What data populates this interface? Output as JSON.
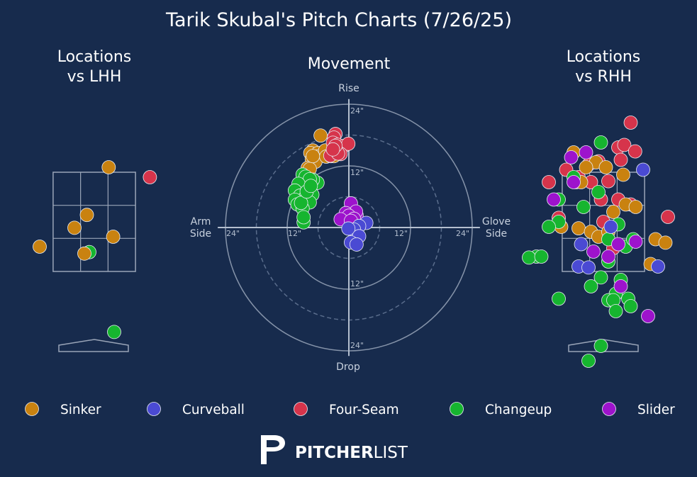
{
  "title": "Tarik Skubal's Pitch Charts (7/26/25)",
  "brand": {
    "bold": "PITCHER",
    "light": "LIST"
  },
  "colors": {
    "Sinker": "#c98210",
    "Curveball": "#4a4ad3",
    "Four-Seam": "#d6344b",
    "Changeup": "#16b52f",
    "Slider": "#9d13cc",
    "background": "#172b4d"
  },
  "legend": [
    "Sinker",
    "Curveball",
    "Four-Seam",
    "Changeup",
    "Slider"
  ],
  "chart_data": [
    {
      "type": "scatter",
      "title": "Locations vs LHH",
      "title_lines": [
        "Locations",
        "vs LHH"
      ],
      "x_unit": "ft from plate center (catcher view)",
      "y_unit": "ft above ground",
      "strike_zone": {
        "x": [
          -0.83,
          0.83
        ],
        "z": [
          1.5,
          3.5
        ]
      },
      "points": [
        {
          "pitch": "Sinker",
          "x": 0.29,
          "z": 3.6
        },
        {
          "pitch": "Four-Seam",
          "x": 1.12,
          "z": 3.4
        },
        {
          "pitch": "Sinker",
          "x": -0.15,
          "z": 2.64
        },
        {
          "pitch": "Sinker",
          "x": -0.4,
          "z": 2.38
        },
        {
          "pitch": "Sinker",
          "x": 0.38,
          "z": 2.2
        },
        {
          "pitch": "Sinker",
          "x": -1.1,
          "z": 2.0
        },
        {
          "pitch": "Changeup",
          "x": -0.1,
          "z": 1.89
        },
        {
          "pitch": "Sinker",
          "x": -0.2,
          "z": 1.86
        },
        {
          "pitch": "Changeup",
          "x": 0.4,
          "z": 0.28
        }
      ]
    },
    {
      "type": "scatter",
      "title": "Movement",
      "x_unit": "inches horizontal break",
      "y_unit": "inches induced vertical break",
      "axis_labels": {
        "top": "Rise",
        "bottom": "Drop",
        "left": "Arm\nSide",
        "right": "Glove\nSide"
      },
      "ring_labels": {
        "up": [
          "12\"",
          "24\""
        ],
        "down": [
          "12\"",
          "24\""
        ],
        "left": [
          "12\"",
          "24\""
        ],
        "right": [
          "12\"",
          "24\""
        ]
      },
      "rings": [
        6,
        12,
        18,
        24
      ],
      "points": [
        {
          "pitch": "Sinker",
          "x": -5.5,
          "y": 17.9
        },
        {
          "pitch": "Sinker",
          "x": -7.0,
          "y": 15.0
        },
        {
          "pitch": "Sinker",
          "x": -7.5,
          "y": 14.5
        },
        {
          "pitch": "Sinker",
          "x": -6.0,
          "y": 14.5
        },
        {
          "pitch": "Sinker",
          "x": -6.3,
          "y": 13.8
        },
        {
          "pitch": "Sinker",
          "x": -7.2,
          "y": 13.3
        },
        {
          "pitch": "Sinker",
          "x": -6.5,
          "y": 12.8
        },
        {
          "pitch": "Sinker",
          "x": -4.4,
          "y": 14.3
        },
        {
          "pitch": "Sinker",
          "x": -4.6,
          "y": 15.0
        },
        {
          "pitch": "Sinker",
          "x": -8.0,
          "y": 11.6
        },
        {
          "pitch": "Sinker",
          "x": -7.6,
          "y": 11.4
        },
        {
          "pitch": "Sinker",
          "x": -4.4,
          "y": 13.8
        },
        {
          "pitch": "Sinker",
          "x": -7.0,
          "y": 13.9
        },
        {
          "pitch": "Sinker",
          "x": -3.5,
          "y": 13.9
        },
        {
          "pitch": "Sinker",
          "x": -2.9,
          "y": 13.9
        },
        {
          "pitch": "Four-Seam",
          "x": -2.6,
          "y": 18.2
        },
        {
          "pitch": "Four-Seam",
          "x": -2.9,
          "y": 17.5
        },
        {
          "pitch": "Four-Seam",
          "x": -3.1,
          "y": 16.5
        },
        {
          "pitch": "Four-Seam",
          "x": -2.2,
          "y": 16.1
        },
        {
          "pitch": "Four-Seam",
          "x": -2.8,
          "y": 15.3
        },
        {
          "pitch": "Four-Seam",
          "x": -2.1,
          "y": 15.1
        },
        {
          "pitch": "Four-Seam",
          "x": -1.5,
          "y": 15.4
        },
        {
          "pitch": "Four-Seam",
          "x": -0.9,
          "y": 15.9
        },
        {
          "pitch": "Four-Seam",
          "x": -0.1,
          "y": 16.3
        },
        {
          "pitch": "Four-Seam",
          "x": -2.6,
          "y": 14.6
        },
        {
          "pitch": "Four-Seam",
          "x": -1.6,
          "y": 14.3
        },
        {
          "pitch": "Four-Seam",
          "x": -3.6,
          "y": 14.0
        },
        {
          "pitch": "Four-Seam",
          "x": -2.1,
          "y": 14.4
        },
        {
          "pitch": "Four-Seam",
          "x": -2.6,
          "y": 15.9
        },
        {
          "pitch": "Four-Seam",
          "x": -3.1,
          "y": 15.2
        },
        {
          "pitch": "Changeup",
          "x": -9.0,
          "y": 10.3
        },
        {
          "pitch": "Changeup",
          "x": -8.4,
          "y": 9.9
        },
        {
          "pitch": "Changeup",
          "x": -6.1,
          "y": 8.7
        },
        {
          "pitch": "Changeup",
          "x": -7.0,
          "y": 9.3
        },
        {
          "pitch": "Changeup",
          "x": -7.6,
          "y": 9.4
        },
        {
          "pitch": "Changeup",
          "x": -9.8,
          "y": 8.5
        },
        {
          "pitch": "Changeup",
          "x": -10.5,
          "y": 7.2
        },
        {
          "pitch": "Changeup",
          "x": -9.5,
          "y": 6.2
        },
        {
          "pitch": "Changeup",
          "x": -8.0,
          "y": 6.2
        },
        {
          "pitch": "Changeup",
          "x": -7.1,
          "y": 6.4
        },
        {
          "pitch": "Changeup",
          "x": -8.6,
          "y": 5.7
        },
        {
          "pitch": "Changeup",
          "x": -7.6,
          "y": 4.9
        },
        {
          "pitch": "Changeup",
          "x": -10.5,
          "y": 5.4
        },
        {
          "pitch": "Changeup",
          "x": -10.0,
          "y": 4.5
        },
        {
          "pitch": "Changeup",
          "x": -9.0,
          "y": 3.7
        },
        {
          "pitch": "Changeup",
          "x": -8.8,
          "y": 1.0
        },
        {
          "pitch": "Changeup",
          "x": -8.8,
          "y": 2.0
        },
        {
          "pitch": "Changeup",
          "x": -9.3,
          "y": 4.8
        },
        {
          "pitch": "Changeup",
          "x": -8.2,
          "y": 7.0
        },
        {
          "pitch": "Changeup",
          "x": -7.4,
          "y": 8.1
        },
        {
          "pitch": "Slider",
          "x": 0.4,
          "y": 3.8
        },
        {
          "pitch": "Slider",
          "x": 0.4,
          "y": 4.7
        },
        {
          "pitch": "Slider",
          "x": 1.5,
          "y": 2.4
        },
        {
          "pitch": "Slider",
          "x": 1.4,
          "y": 3.1
        },
        {
          "pitch": "Slider",
          "x": -0.6,
          "y": 2.8
        },
        {
          "pitch": "Slider",
          "x": 0.0,
          "y": 2.3
        },
        {
          "pitch": "Slider",
          "x": 1.0,
          "y": 1.7
        },
        {
          "pitch": "Slider",
          "x": -1.6,
          "y": 1.6
        },
        {
          "pitch": "Slider",
          "x": 0.4,
          "y": 1.3
        },
        {
          "pitch": "Curveball",
          "x": 3.4,
          "y": 0.9
        },
        {
          "pitch": "Curveball",
          "x": 2.0,
          "y": 0.3
        },
        {
          "pitch": "Curveball",
          "x": 1.0,
          "y": -0.4
        },
        {
          "pitch": "Curveball",
          "x": -0.1,
          "y": -0.2
        },
        {
          "pitch": "Curveball",
          "x": 2.0,
          "y": -1.7
        },
        {
          "pitch": "Curveball",
          "x": 0.4,
          "y": -2.9
        },
        {
          "pitch": "Curveball",
          "x": 1.5,
          "y": -3.3
        }
      ]
    },
    {
      "type": "scatter",
      "title": "Locations vs RHH",
      "title_lines": [
        "Locations",
        "vs RHH"
      ],
      "x_unit": "ft from plate center (catcher view)",
      "y_unit": "ft above ground",
      "strike_zone": {
        "x": [
          -0.83,
          0.83
        ],
        "z": [
          1.5,
          3.5
        ]
      },
      "points": [
        {
          "pitch": "Four-Seam",
          "x": 0.55,
          "z": 4.5
        },
        {
          "pitch": "Four-Seam",
          "x": 0.3,
          "z": 4.0
        },
        {
          "pitch": "Four-Seam",
          "x": 0.42,
          "z": 4.05
        },
        {
          "pitch": "Four-Seam",
          "x": 0.64,
          "z": 3.92
        },
        {
          "pitch": "Four-Seam",
          "x": 0.35,
          "z": 3.75
        },
        {
          "pitch": "Four-Seam",
          "x": -0.1,
          "z": 3.72
        },
        {
          "pitch": "Four-Seam",
          "x": -0.75,
          "z": 3.55
        },
        {
          "pitch": "Four-Seam",
          "x": -1.1,
          "z": 3.3
        },
        {
          "pitch": "Four-Seam",
          "x": -0.5,
          "z": 3.4
        },
        {
          "pitch": "Four-Seam",
          "x": -0.25,
          "z": 3.3
        },
        {
          "pitch": "Four-Seam",
          "x": 0.1,
          "z": 3.32
        },
        {
          "pitch": "Four-Seam",
          "x": -0.05,
          "z": 2.95
        },
        {
          "pitch": "Four-Seam",
          "x": 0.3,
          "z": 2.95
        },
        {
          "pitch": "Four-Seam",
          "x": 0.55,
          "z": 2.85
        },
        {
          "pitch": "Four-Seam",
          "x": 1.3,
          "z": 2.6
        },
        {
          "pitch": "Four-Seam",
          "x": -0.9,
          "z": 2.58
        },
        {
          "pitch": "Four-Seam",
          "x": 0.0,
          "z": 2.5
        },
        {
          "pitch": "Four-Seam",
          "x": 0.2,
          "z": 1.97
        },
        {
          "pitch": "Four-Seam",
          "x": -0.55,
          "z": 3.3
        },
        {
          "pitch": "Four-Seam",
          "x": -0.3,
          "z": 3.65
        },
        {
          "pitch": "Sinker",
          "x": -0.6,
          "z": 3.9
        },
        {
          "pitch": "Sinker",
          "x": -0.15,
          "z": 3.7
        },
        {
          "pitch": "Sinker",
          "x": 0.4,
          "z": 3.45
        },
        {
          "pitch": "Sinker",
          "x": -0.35,
          "z": 3.6
        },
        {
          "pitch": "Sinker",
          "x": 0.05,
          "z": 3.6
        },
        {
          "pitch": "Sinker",
          "x": -0.45,
          "z": 3.3
        },
        {
          "pitch": "Sinker",
          "x": 0.45,
          "z": 2.85
        },
        {
          "pitch": "Sinker",
          "x": 0.2,
          "z": 2.7
        },
        {
          "pitch": "Sinker",
          "x": 0.65,
          "z": 2.8
        },
        {
          "pitch": "Sinker",
          "x": -0.85,
          "z": 2.4
        },
        {
          "pitch": "Sinker",
          "x": -0.5,
          "z": 2.37
        },
        {
          "pitch": "Sinker",
          "x": -0.25,
          "z": 2.3
        },
        {
          "pitch": "Sinker",
          "x": -0.1,
          "z": 2.2
        },
        {
          "pitch": "Sinker",
          "x": 0.1,
          "z": 2.3
        },
        {
          "pitch": "Sinker",
          "x": 1.05,
          "z": 2.15
        },
        {
          "pitch": "Sinker",
          "x": 1.25,
          "z": 2.08
        },
        {
          "pitch": "Sinker",
          "x": 0.95,
          "z": 1.65
        },
        {
          "pitch": "Changeup",
          "x": -0.05,
          "z": 4.1
        },
        {
          "pitch": "Changeup",
          "x": -0.6,
          "z": 3.4
        },
        {
          "pitch": "Changeup",
          "x": -0.1,
          "z": 3.1
        },
        {
          "pitch": "Changeup",
          "x": -0.4,
          "z": 2.8
        },
        {
          "pitch": "Changeup",
          "x": -0.9,
          "z": 2.95
        },
        {
          "pitch": "Changeup",
          "x": -0.9,
          "z": 2.5
        },
        {
          "pitch": "Changeup",
          "x": -1.1,
          "z": 2.4
        },
        {
          "pitch": "Changeup",
          "x": 0.3,
          "z": 2.45
        },
        {
          "pitch": "Changeup",
          "x": 0.1,
          "z": 2.15
        },
        {
          "pitch": "Changeup",
          "x": 0.45,
          "z": 2.0
        },
        {
          "pitch": "Changeup",
          "x": 0.6,
          "z": 2.15
        },
        {
          "pitch": "Changeup",
          "x": -1.35,
          "z": 1.8
        },
        {
          "pitch": "Changeup",
          "x": -1.5,
          "z": 1.78
        },
        {
          "pitch": "Changeup",
          "x": -1.25,
          "z": 1.8
        },
        {
          "pitch": "Changeup",
          "x": 0.1,
          "z": 1.7
        },
        {
          "pitch": "Changeup",
          "x": -0.05,
          "z": 1.38
        },
        {
          "pitch": "Changeup",
          "x": 0.35,
          "z": 1.33
        },
        {
          "pitch": "Changeup",
          "x": -0.25,
          "z": 1.2
        },
        {
          "pitch": "Changeup",
          "x": 0.25,
          "z": 1.05
        },
        {
          "pitch": "Changeup",
          "x": 0.1,
          "z": 0.92
        },
        {
          "pitch": "Changeup",
          "x": 0.2,
          "z": 0.92
        },
        {
          "pitch": "Changeup",
          "x": 0.5,
          "z": 0.95
        },
        {
          "pitch": "Changeup",
          "x": 0.55,
          "z": 0.8
        },
        {
          "pitch": "Changeup",
          "x": 0.25,
          "z": 0.7
        },
        {
          "pitch": "Changeup",
          "x": -0.9,
          "z": 0.95
        },
        {
          "pitch": "Changeup",
          "x": -0.05,
          "z": 0.0
        },
        {
          "pitch": "Changeup",
          "x": -0.3,
          "z": -0.3
        },
        {
          "pitch": "Curveball",
          "x": 0.8,
          "z": 3.55
        },
        {
          "pitch": "Curveball",
          "x": -0.45,
          "z": 2.05
        },
        {
          "pitch": "Curveball",
          "x": -0.5,
          "z": 1.6
        },
        {
          "pitch": "Curveball",
          "x": -0.3,
          "z": 1.58
        },
        {
          "pitch": "Curveball",
          "x": 1.1,
          "z": 1.6
        },
        {
          "pitch": "Curveball",
          "x": 0.15,
          "z": 2.4
        },
        {
          "pitch": "Slider",
          "x": -0.65,
          "z": 3.8
        },
        {
          "pitch": "Slider",
          "x": -0.35,
          "z": 3.9
        },
        {
          "pitch": "Slider",
          "x": -0.6,
          "z": 3.3
        },
        {
          "pitch": "Slider",
          "x": -0.2,
          "z": 1.9
        },
        {
          "pitch": "Slider",
          "x": 0.1,
          "z": 1.8
        },
        {
          "pitch": "Slider",
          "x": 0.3,
          "z": 2.05
        },
        {
          "pitch": "Slider",
          "x": 0.65,
          "z": 2.1
        },
        {
          "pitch": "Slider",
          "x": 0.35,
          "z": 1.2
        },
        {
          "pitch": "Slider",
          "x": 0.9,
          "z": 0.6
        },
        {
          "pitch": "Slider",
          "x": -1.0,
          "z": 2.95
        }
      ]
    }
  ]
}
